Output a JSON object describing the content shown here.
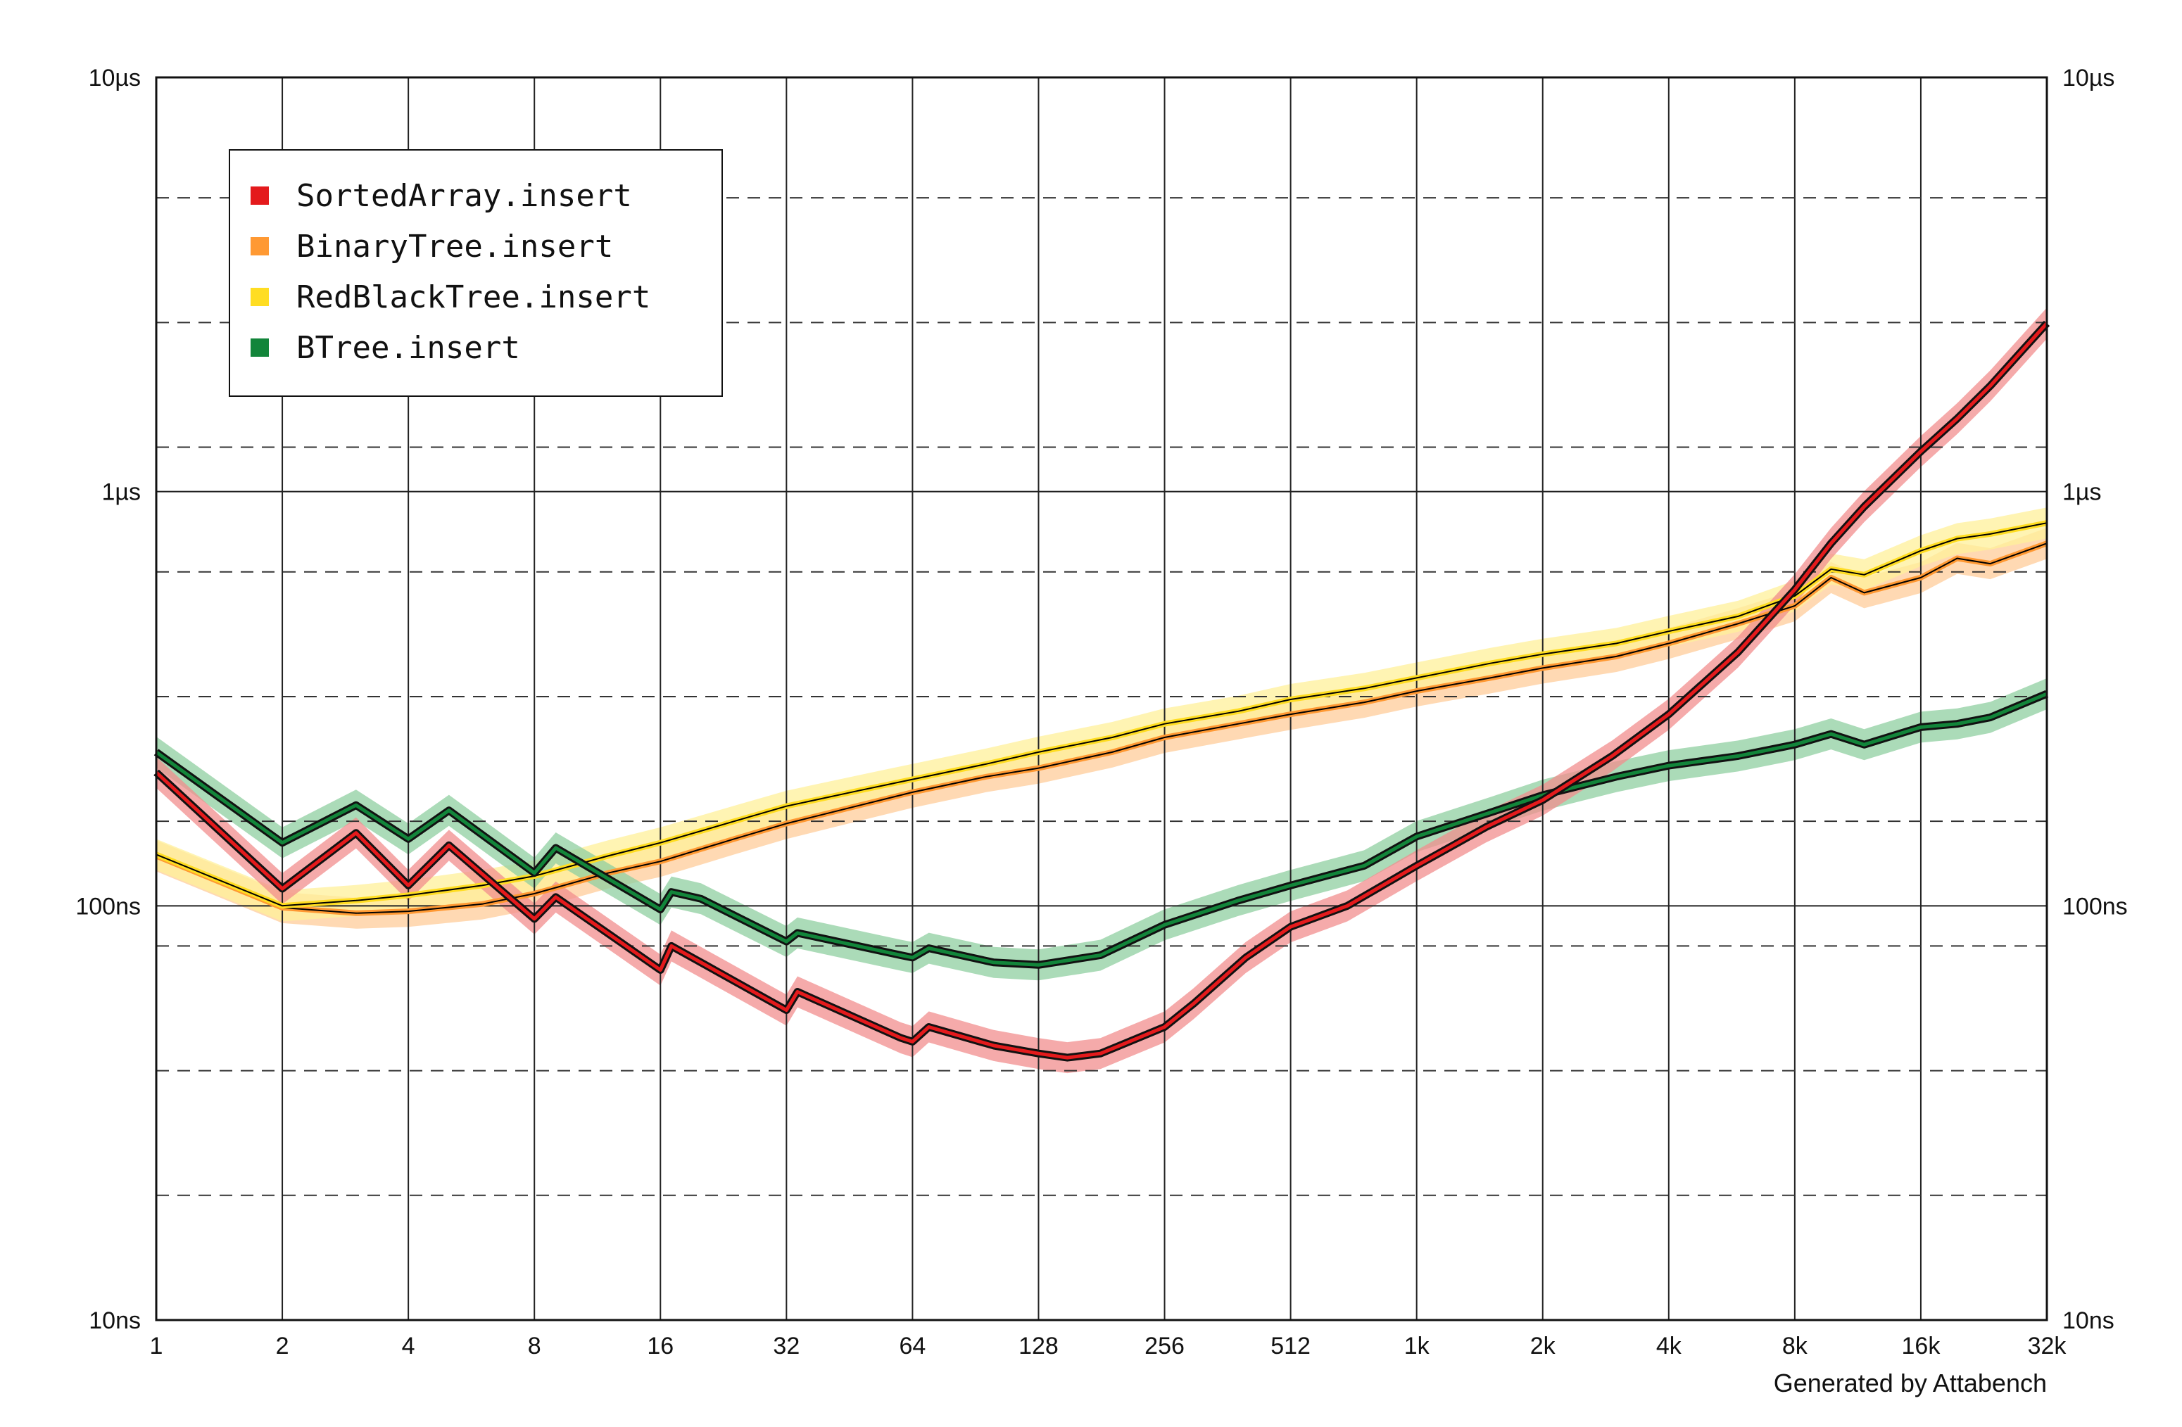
{
  "chart_data": {
    "type": "line",
    "title": "",
    "xlabel": "",
    "ylabel": "",
    "x_scale": "log2",
    "y_scale": "log10",
    "y_unit": "seconds",
    "xlim": [
      1,
      32768
    ],
    "ylim": [
      1e-08,
      1e-05
    ],
    "x_ticks": [
      {
        "value": 1,
        "label": "1"
      },
      {
        "value": 2,
        "label": "2"
      },
      {
        "value": 4,
        "label": "4"
      },
      {
        "value": 8,
        "label": "8"
      },
      {
        "value": 16,
        "label": "16"
      },
      {
        "value": 32,
        "label": "32"
      },
      {
        "value": 64,
        "label": "64"
      },
      {
        "value": 128,
        "label": "128"
      },
      {
        "value": 256,
        "label": "256"
      },
      {
        "value": 512,
        "label": "512"
      },
      {
        "value": 1024,
        "label": "1k"
      },
      {
        "value": 2048,
        "label": "2k"
      },
      {
        "value": 4096,
        "label": "4k"
      },
      {
        "value": 8192,
        "label": "8k"
      },
      {
        "value": 16384,
        "label": "16k"
      },
      {
        "value": 32768,
        "label": "32k"
      }
    ],
    "y_ticks": [
      {
        "value": 1e-08,
        "label": "10ns"
      },
      {
        "value": 1e-07,
        "label": "100ns"
      },
      {
        "value": 1e-06,
        "label": "1µs"
      },
      {
        "value": 1e-05,
        "label": "10µs"
      }
    ],
    "y_minor_ticks": [
      2e-08,
      4e-08,
      8e-08,
      1.6e-07,
      3.2e-07,
      6.4e-07,
      1.28e-06,
      2.56e-06,
      5.12e-06
    ],
    "grid": true,
    "legend_position": "top-left",
    "series": [
      {
        "name": "SortedArray.insert",
        "color": "#e41a1c",
        "band_color": "#f28e8e",
        "points": [
          [
            1,
            2.1e-07
          ],
          [
            2,
            1.1e-07
          ],
          [
            3,
            1.5e-07
          ],
          [
            4,
            1.12e-07
          ],
          [
            5,
            1.4e-07
          ],
          [
            8,
            9.3e-08
          ],
          [
            9,
            1.05e-07
          ],
          [
            16,
            7e-08
          ],
          [
            17,
            8e-08
          ],
          [
            20,
            7.3e-08
          ],
          [
            32,
            5.6e-08
          ],
          [
            34,
            6.2e-08
          ],
          [
            60,
            4.8e-08
          ],
          [
            64,
            4.7e-08
          ],
          [
            70,
            5.1e-08
          ],
          [
            100,
            4.6e-08
          ],
          [
            128,
            4.4e-08
          ],
          [
            150,
            4.3e-08
          ],
          [
            180,
            4.4e-08
          ],
          [
            200,
            4.6e-08
          ],
          [
            256,
            5.1e-08
          ],
          [
            300,
            5.8e-08
          ],
          [
            400,
            7.5e-08
          ],
          [
            512,
            8.9e-08
          ],
          [
            700,
            1e-07
          ],
          [
            1024,
            1.25e-07
          ],
          [
            1500,
            1.55e-07
          ],
          [
            2048,
            1.8e-07
          ],
          [
            3000,
            2.3e-07
          ],
          [
            4096,
            2.9e-07
          ],
          [
            6000,
            4.1e-07
          ],
          [
            8192,
            5.8e-07
          ],
          [
            10000,
            7.5e-07
          ],
          [
            12000,
            9.2e-07
          ],
          [
            16384,
            1.25e-06
          ],
          [
            20000,
            1.5e-06
          ],
          [
            24000,
            1.8e-06
          ],
          [
            32768,
            2.55e-06
          ]
        ]
      },
      {
        "name": "BinaryTree.insert",
        "color": "#ff9933",
        "band_color": "#ffcc99",
        "points": [
          [
            1,
            1.32e-07
          ],
          [
            2,
            9.9e-08
          ],
          [
            3,
            9.6e-08
          ],
          [
            4,
            9.7e-08
          ],
          [
            6,
            1.01e-07
          ],
          [
            8,
            1.07e-07
          ],
          [
            12,
            1.2e-07
          ],
          [
            16,
            1.28e-07
          ],
          [
            24,
            1.45e-07
          ],
          [
            32,
            1.58e-07
          ],
          [
            48,
            1.75e-07
          ],
          [
            64,
            1.88e-07
          ],
          [
            96,
            2.05e-07
          ],
          [
            128,
            2.15e-07
          ],
          [
            192,
            2.35e-07
          ],
          [
            256,
            2.55e-07
          ],
          [
            384,
            2.75e-07
          ],
          [
            512,
            2.9e-07
          ],
          [
            768,
            3.1e-07
          ],
          [
            1024,
            3.3e-07
          ],
          [
            1536,
            3.55e-07
          ],
          [
            2048,
            3.75e-07
          ],
          [
            3072,
            4e-07
          ],
          [
            4096,
            4.3e-07
          ],
          [
            6000,
            4.8e-07
          ],
          [
            8192,
            5.3e-07
          ],
          [
            10000,
            6.2e-07
          ],
          [
            12000,
            5.7e-07
          ],
          [
            16384,
            6.2e-07
          ],
          [
            20000,
            6.9e-07
          ],
          [
            24000,
            6.7e-07
          ],
          [
            32768,
            7.5e-07
          ]
        ]
      },
      {
        "name": "RedBlackTree.insert",
        "color": "#ffdd22",
        "band_color": "#fff09a",
        "points": [
          [
            1,
            1.33e-07
          ],
          [
            2,
            1e-07
          ],
          [
            3,
            1.03e-07
          ],
          [
            4,
            1.06e-07
          ],
          [
            6,
            1.12e-07
          ],
          [
            8,
            1.18e-07
          ],
          [
            12,
            1.32e-07
          ],
          [
            16,
            1.42e-07
          ],
          [
            24,
            1.6e-07
          ],
          [
            32,
            1.74e-07
          ],
          [
            48,
            1.9e-07
          ],
          [
            64,
            2.02e-07
          ],
          [
            96,
            2.2e-07
          ],
          [
            128,
            2.35e-07
          ],
          [
            192,
            2.55e-07
          ],
          [
            256,
            2.75e-07
          ],
          [
            384,
            2.95e-07
          ],
          [
            512,
            3.15e-07
          ],
          [
            768,
            3.35e-07
          ],
          [
            1024,
            3.55e-07
          ],
          [
            1536,
            3.85e-07
          ],
          [
            2048,
            4.05e-07
          ],
          [
            3072,
            4.3e-07
          ],
          [
            4096,
            4.6e-07
          ],
          [
            6000,
            5e-07
          ],
          [
            8192,
            5.6e-07
          ],
          [
            10000,
            6.5e-07
          ],
          [
            12000,
            6.3e-07
          ],
          [
            16384,
            7.2e-07
          ],
          [
            20000,
            7.7e-07
          ],
          [
            24000,
            7.9e-07
          ],
          [
            32768,
            8.4e-07
          ]
        ]
      },
      {
        "name": "BTree.insert",
        "color": "#12853a",
        "band_color": "#8fcfa0",
        "points": [
          [
            1,
            2.35e-07
          ],
          [
            2,
            1.42e-07
          ],
          [
            3,
            1.75e-07
          ],
          [
            4,
            1.45e-07
          ],
          [
            5,
            1.7e-07
          ],
          [
            8,
            1.2e-07
          ],
          [
            9,
            1.38e-07
          ],
          [
            16,
            9.8e-08
          ],
          [
            17,
            1.08e-07
          ],
          [
            20,
            1.04e-07
          ],
          [
            32,
            8.2e-08
          ],
          [
            34,
            8.6e-08
          ],
          [
            60,
            7.6e-08
          ],
          [
            64,
            7.5e-08
          ],
          [
            70,
            7.9e-08
          ],
          [
            100,
            7.3e-08
          ],
          [
            128,
            7.2e-08
          ],
          [
            180,
            7.6e-08
          ],
          [
            256,
            9e-08
          ],
          [
            384,
            1.03e-07
          ],
          [
            512,
            1.12e-07
          ],
          [
            768,
            1.25e-07
          ],
          [
            1024,
            1.47e-07
          ],
          [
            1536,
            1.68e-07
          ],
          [
            2048,
            1.85e-07
          ],
          [
            3072,
            2.05e-07
          ],
          [
            4096,
            2.18e-07
          ],
          [
            6000,
            2.3e-07
          ],
          [
            8192,
            2.45e-07
          ],
          [
            10000,
            2.6e-07
          ],
          [
            12000,
            2.45e-07
          ],
          [
            16384,
            2.7e-07
          ],
          [
            20000,
            2.75e-07
          ],
          [
            24000,
            2.85e-07
          ],
          [
            32768,
            3.25e-07
          ]
        ]
      }
    ]
  },
  "legend": {
    "items": [
      {
        "label": "SortedArray.insert",
        "color": "#e41a1c"
      },
      {
        "label": "BinaryTree.insert",
        "color": "#ff9933"
      },
      {
        "label": "RedBlackTree.insert",
        "color": "#ffdd22"
      },
      {
        "label": "BTree.insert",
        "color": "#12853a"
      }
    ]
  },
  "credit": "Generated by Attabench"
}
